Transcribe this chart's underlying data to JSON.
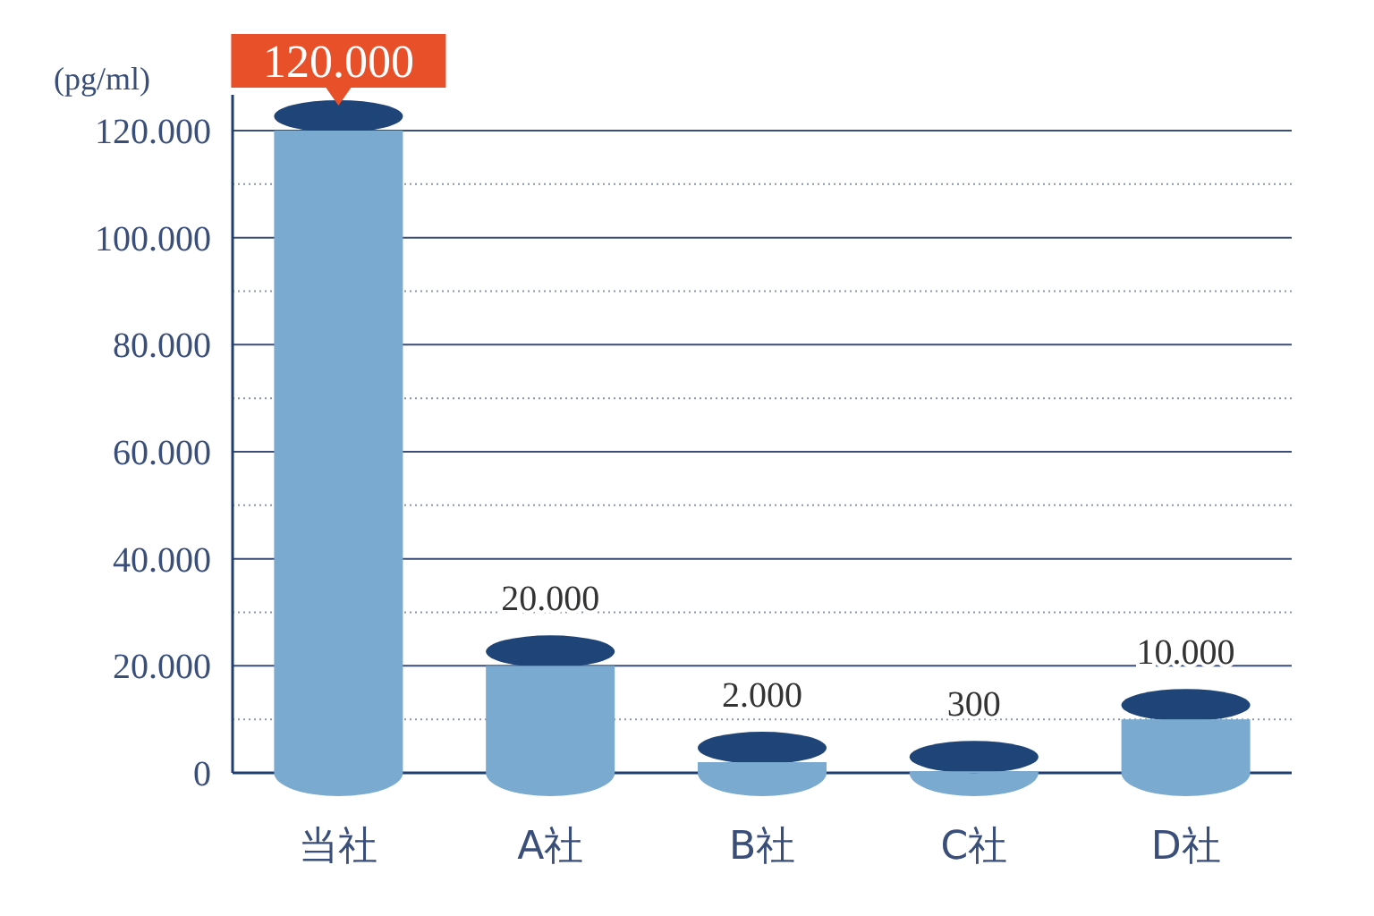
{
  "chart_data": {
    "type": "bar",
    "ylabel": "(pg/ml)",
    "categories": [
      "当社",
      "A社",
      "B社",
      "C社",
      "D社"
    ],
    "values": [
      120000,
      20000,
      2000,
      300,
      10000
    ],
    "value_labels": [
      "120.000",
      "20.000",
      "2.000",
      "300",
      "10.000"
    ],
    "color": "#7aaad0",
    "ylim": [
      0,
      120000
    ],
    "yticks": [
      {
        "value": 0,
        "label": "0"
      },
      {
        "value": 10000,
        "label": null
      },
      {
        "value": 20000,
        "label": "20.000"
      },
      {
        "value": 30000,
        "label": null
      },
      {
        "value": 40000,
        "label": "40.000"
      },
      {
        "value": 50000,
        "label": null
      },
      {
        "value": 60000,
        "label": "60.000"
      },
      {
        "value": 70000,
        "label": null
      },
      {
        "value": 80000,
        "label": "80.000"
      },
      {
        "value": 90000,
        "label": null
      },
      {
        "value": 100000,
        "label": "100.000"
      },
      {
        "value": 110000,
        "label": null
      },
      {
        "value": 120000,
        "label": "120.000"
      }
    ],
    "grid": "y"
  }
}
